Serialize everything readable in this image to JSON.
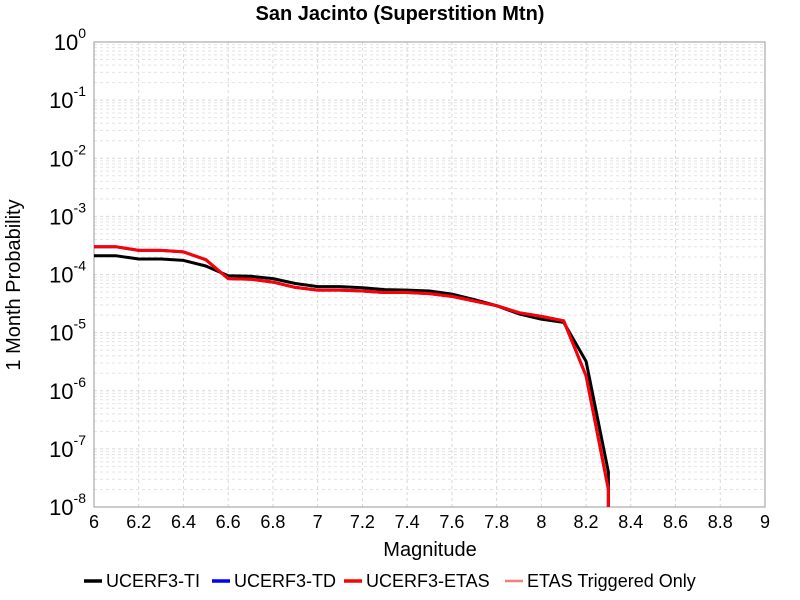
{
  "chart_data": {
    "type": "line",
    "title": "San Jacinto (Superstition Mtn)",
    "xlabel": "Magnitude",
    "ylabel": "1 Month Probability",
    "xlim": [
      6,
      9
    ],
    "ylim": [
      1e-08,
      1
    ],
    "yscale": "log",
    "grid": true,
    "legend_position": "bottom",
    "x_ticks": [
      "6",
      "6.2",
      "6.4",
      "6.6",
      "6.8",
      "7",
      "7.2",
      "7.4",
      "7.6",
      "7.8",
      "8",
      "8.2",
      "8.4",
      "8.6",
      "8.8",
      "9"
    ],
    "y_ticks": [
      {
        "base": "10",
        "exp": "0"
      },
      {
        "base": "10",
        "exp": "-1"
      },
      {
        "base": "10",
        "exp": "-2"
      },
      {
        "base": "10",
        "exp": "-3"
      },
      {
        "base": "10",
        "exp": "-4"
      },
      {
        "base": "10",
        "exp": "-5"
      },
      {
        "base": "10",
        "exp": "-6"
      },
      {
        "base": "10",
        "exp": "-7"
      },
      {
        "base": "10",
        "exp": "-8"
      }
    ],
    "series": [
      {
        "name": "UCERF3-TI",
        "color": "#000000",
        "line_width": 3,
        "x": [
          6.0,
          6.1,
          6.2,
          6.3,
          6.4,
          6.5,
          6.6,
          6.7,
          6.8,
          6.9,
          7.0,
          7.1,
          7.2,
          7.3,
          7.4,
          7.5,
          7.6,
          7.7,
          7.8,
          7.9,
          8.0,
          8.1,
          8.2,
          8.3,
          8.3
        ],
        "y": [
          0.00021,
          0.00021,
          0.000185,
          0.000185,
          0.000175,
          0.00014,
          9.5e-05,
          9.3e-05,
          8.5e-05,
          7e-05,
          6.2e-05,
          6.2e-05,
          5.9e-05,
          5.5e-05,
          5.4e-05,
          5.2e-05,
          4.6e-05,
          3.7e-05,
          2.9e-05,
          2.1e-05,
          1.7e-05,
          1.5e-05,
          3.2e-06,
          4e-08,
          8e-09
        ]
      },
      {
        "name": "UCERF3-TD",
        "color": "#0000ff",
        "line_width": 3,
        "x": [
          6.0,
          6.1,
          6.2,
          6.3,
          6.4,
          6.5,
          6.6,
          6.7,
          6.8,
          6.9,
          7.0,
          7.1,
          7.2,
          7.3,
          7.4,
          7.5,
          7.6,
          7.7,
          7.8,
          7.9,
          8.0,
          8.1,
          8.2,
          8.3,
          8.3
        ],
        "y": [
          0.0003,
          0.0003,
          0.00026,
          0.00026,
          0.000245,
          0.00018,
          8.5e-05,
          8.3e-05,
          7.4e-05,
          6e-05,
          5.4e-05,
          5.4e-05,
          5.2e-05,
          4.9e-05,
          4.9e-05,
          4.7e-05,
          4.2e-05,
          3.5e-05,
          2.9e-05,
          2.2e-05,
          1.9e-05,
          1.6e-05,
          1.8e-06,
          2e-08,
          8e-09
        ]
      },
      {
        "name": "UCERF3-ETAS",
        "color": "#ff0000",
        "line_width": 3,
        "x": [
          6.0,
          6.1,
          6.2,
          6.3,
          6.4,
          6.5,
          6.6,
          6.7,
          6.8,
          6.9,
          7.0,
          7.1,
          7.2,
          7.3,
          7.4,
          7.5,
          7.6,
          7.7,
          7.8,
          7.9,
          8.0,
          8.1,
          8.2,
          8.3,
          8.3
        ],
        "y": [
          0.0003,
          0.0003,
          0.00026,
          0.00026,
          0.000245,
          0.00018,
          8.5e-05,
          8.3e-05,
          7.4e-05,
          6e-05,
          5.4e-05,
          5.4e-05,
          5.2e-05,
          4.9e-05,
          4.9e-05,
          4.7e-05,
          4.2e-05,
          3.5e-05,
          2.9e-05,
          2.2e-05,
          1.9e-05,
          1.6e-05,
          1.8e-06,
          2e-08,
          8e-09
        ]
      },
      {
        "name": "ETAS Triggered Only",
        "color": "#f08080",
        "line_width": 2,
        "x": [],
        "y": []
      }
    ]
  }
}
